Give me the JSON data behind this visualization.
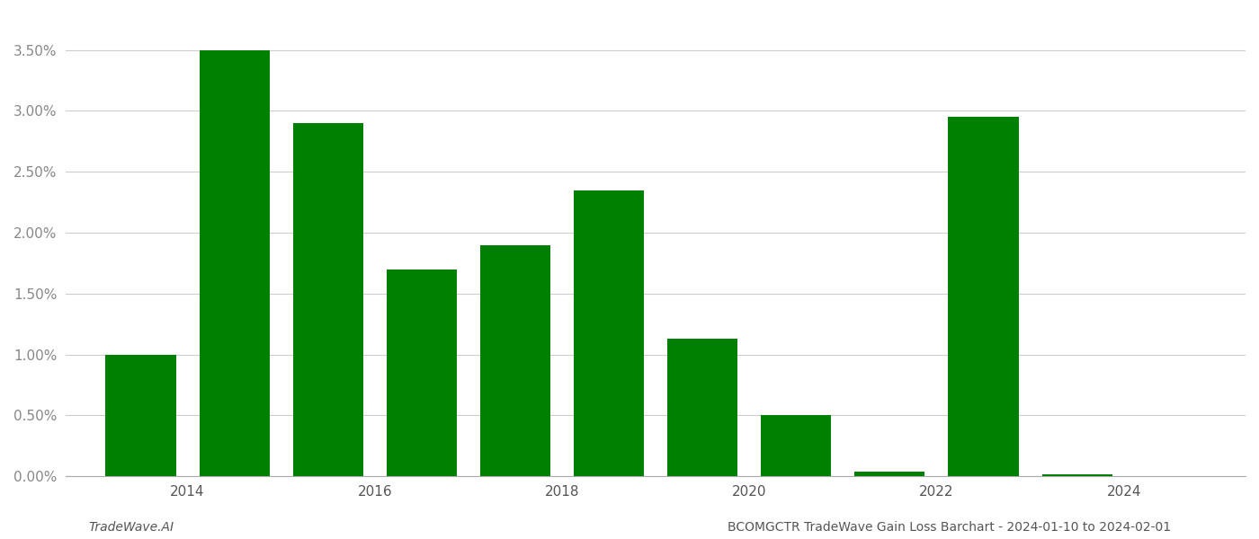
{
  "years": [
    2013,
    2014,
    2015,
    2016,
    2017,
    2018,
    2019,
    2020,
    2021,
    2022,
    2023
  ],
  "values": [
    0.01,
    0.035,
    0.029,
    0.017,
    0.019,
    0.0235,
    0.0113,
    0.005,
    0.0004,
    0.0295,
    0.0002
  ],
  "bar_color": "#008000",
  "footer_left": "TradeWave.AI",
  "footer_right": "BCOMGCTR TradeWave Gain Loss Barchart - 2024-01-10 to 2024-02-01",
  "ylim": [
    0,
    0.038
  ],
  "yticks": [
    0.0,
    0.005,
    0.01,
    0.015,
    0.02,
    0.025,
    0.03,
    0.035
  ],
  "xtick_positions": [
    2013.5,
    2015.5,
    2017.5,
    2019.5,
    2021.5,
    2023.5
  ],
  "xtick_labels": [
    "2014",
    "2016",
    "2018",
    "2020",
    "2022",
    "2024"
  ],
  "xlim": [
    2012.2,
    2024.8
  ],
  "background_color": "#ffffff",
  "grid_color": "#cccccc",
  "bar_width": 0.75
}
